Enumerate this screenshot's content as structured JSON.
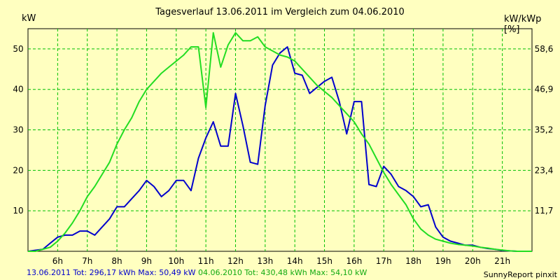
{
  "header": {
    "title": "Tagesverlauf 13.06.2011 im Vergleich zum 04.06.2010",
    "left_unit": "kW",
    "right_unit": "kW/kWp [%]"
  },
  "footer": {
    "series1_text": "13.06.2011 Tot: 296,17 kWh Max: 50,49 kW",
    "series2_text": "04.06.2010 Tot: 430,48 kWh Max: 54,10 kW",
    "brand": "SunnyReport pinxit"
  },
  "colors": {
    "background": "#ffffc0",
    "grid": "#00c000",
    "series1": "#0000cc",
    "series2": "#22dd22"
  },
  "chart_data": {
    "type": "line",
    "title": "Tagesverlauf 13.06.2011 im Vergleich zum 04.06.2010",
    "xlabel": "",
    "ylabel": "kW",
    "y2label": "kW/kWp [%]",
    "xlim": [
      5.0,
      22.0
    ],
    "ylim": [
      0,
      55
    ],
    "x_ticks": [
      6,
      7,
      8,
      9,
      10,
      11,
      12,
      13,
      14,
      15,
      16,
      17,
      18,
      19,
      20,
      21
    ],
    "x_tick_labels": [
      "6h",
      "7h",
      "8h",
      "9h",
      "10h",
      "11h",
      "12h",
      "13h",
      "14h",
      "15h",
      "16h",
      "17h",
      "18h",
      "19h",
      "20h",
      "21h"
    ],
    "y_ticks": [
      10,
      20,
      30,
      40,
      50
    ],
    "y_tick_labels": [
      "10",
      "20",
      "30",
      "40",
      "50"
    ],
    "y2_tick_labels": [
      "11,7",
      "23,4",
      "35,2",
      "46,9",
      "58,6"
    ],
    "grid": true,
    "series": [
      {
        "name": "13.06.2011",
        "color": "#0000cc",
        "x": [
          5.0,
          5.5,
          5.75,
          6.0,
          6.25,
          6.5,
          6.75,
          7.0,
          7.25,
          7.5,
          7.75,
          8.0,
          8.25,
          8.5,
          8.75,
          9.0,
          9.25,
          9.5,
          9.75,
          10.0,
          10.25,
          10.5,
          10.75,
          11.0,
          11.25,
          11.5,
          11.75,
          12.0,
          12.25,
          12.5,
          12.75,
          13.0,
          13.25,
          13.5,
          13.75,
          14.0,
          14.25,
          14.5,
          14.75,
          15.0,
          15.25,
          15.5,
          15.75,
          16.0,
          16.25,
          16.5,
          16.75,
          17.0,
          17.25,
          17.5,
          17.75,
          18.0,
          18.25,
          18.5,
          18.75,
          19.0,
          19.25,
          19.5,
          19.75,
          20.0,
          20.25,
          20.5,
          20.75,
          21.0,
          21.25,
          21.5,
          22.0
        ],
        "values": [
          0.0,
          0.5,
          2.0,
          3.5,
          4.0,
          4.0,
          5.0,
          5.0,
          4.0,
          6.0,
          8.0,
          11.0,
          11.0,
          13.0,
          15.0,
          17.5,
          16.0,
          13.5,
          15.0,
          17.5,
          17.5,
          15.0,
          23.0,
          28.0,
          32.0,
          26.0,
          26.0,
          39.0,
          31.0,
          22.0,
          21.5,
          36.0,
          46.0,
          49.0,
          50.5,
          44.0,
          43.5,
          39.0,
          40.5,
          42.0,
          43.0,
          37.0,
          29.0,
          37.0,
          37.0,
          16.5,
          16.0,
          21.0,
          19.0,
          16.0,
          15.0,
          13.5,
          11.0,
          11.5,
          6.0,
          3.5,
          2.5,
          2.0,
          1.5,
          1.5,
          1.0,
          0.7,
          0.5,
          0.2,
          0.1,
          0.0,
          0.0
        ]
      },
      {
        "name": "04.06.2010",
        "color": "#22dd22",
        "x": [
          5.0,
          5.25,
          5.5,
          5.75,
          6.0,
          6.25,
          6.5,
          6.75,
          7.0,
          7.25,
          7.5,
          7.75,
          8.0,
          8.25,
          8.5,
          8.75,
          9.0,
          9.25,
          9.5,
          9.75,
          10.0,
          10.25,
          10.5,
          10.75,
          11.0,
          11.25,
          11.5,
          11.75,
          12.0,
          12.25,
          12.5,
          12.75,
          13.0,
          13.25,
          13.5,
          13.75,
          14.0,
          14.25,
          14.5,
          14.75,
          15.0,
          15.25,
          15.5,
          15.75,
          16.0,
          16.25,
          16.5,
          16.75,
          17.0,
          17.25,
          17.5,
          17.75,
          18.0,
          18.25,
          18.5,
          18.75,
          19.0,
          19.25,
          19.5,
          19.75,
          20.0,
          20.25,
          20.5,
          20.75,
          21.0,
          21.25,
          21.5,
          22.0
        ],
        "values": [
          0.0,
          0.0,
          0.5,
          1.0,
          2.5,
          4.5,
          7.0,
          10.0,
          13.5,
          16.0,
          19.0,
          22.0,
          26.5,
          30.0,
          33.0,
          37.0,
          40.0,
          42.0,
          44.0,
          45.5,
          47.0,
          48.5,
          50.5,
          50.5,
          35.5,
          54.0,
          45.5,
          51.0,
          54.0,
          52.0,
          52.0,
          53.0,
          50.5,
          49.5,
          48.5,
          48.0,
          47.0,
          45.0,
          43.0,
          41.0,
          39.5,
          38.0,
          36.0,
          34.0,
          32.0,
          29.0,
          26.5,
          23.0,
          19.5,
          16.5,
          14.0,
          11.5,
          8.0,
          5.5,
          4.0,
          3.0,
          2.5,
          2.0,
          1.7,
          1.5,
          1.3,
          1.0,
          0.8,
          0.5,
          0.3,
          0.1,
          0.0,
          0.0
        ]
      }
    ]
  }
}
